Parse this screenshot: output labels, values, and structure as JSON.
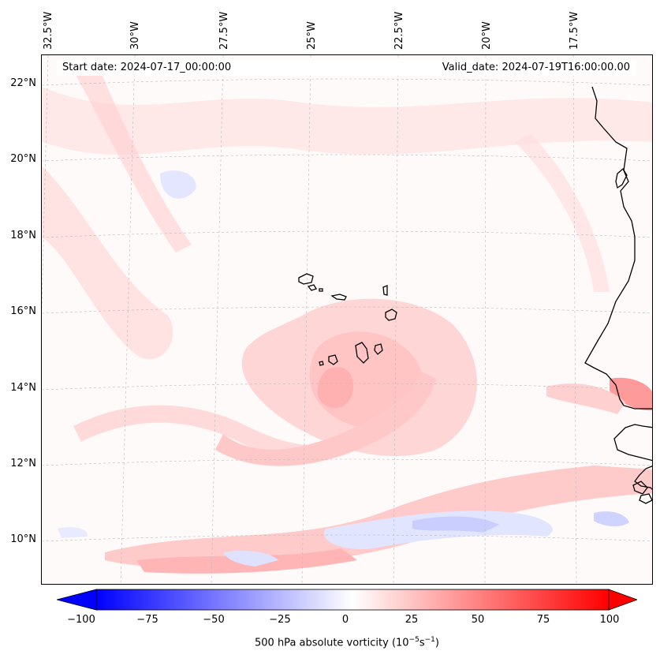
{
  "map": {
    "region": "Eastern tropical Atlantic, Cape Verde, West Africa coast",
    "longitude_labels": [
      "32.5°W",
      "30°W",
      "27.5°W",
      "25°W",
      "22.5°W",
      "20°W",
      "17.5°W"
    ],
    "latitude_labels": [
      "22°N",
      "20°N",
      "18°N",
      "16°N",
      "14°N",
      "12°N",
      "10°N"
    ],
    "start_date_text": "Start date: 2024-07-17_00:00:00",
    "valid_date_text": "Valid_date: 2024-07-19T16:00:00.00",
    "colors": {
      "negative": "#0000ff",
      "neutral": "#ffffff",
      "positive": "#ff0000",
      "coast": "#000000"
    }
  },
  "colorbar": {
    "min": -100,
    "max": 100,
    "tick_labels": [
      "−100",
      "−75",
      "−50",
      "−25",
      "0",
      "25",
      "50",
      "75",
      "100"
    ],
    "label_prefix": "500 hPa absolute vorticity (10",
    "label_exp1": "−5",
    "label_mid": "s",
    "label_exp2": "−1",
    "label_suffix": ")"
  }
}
